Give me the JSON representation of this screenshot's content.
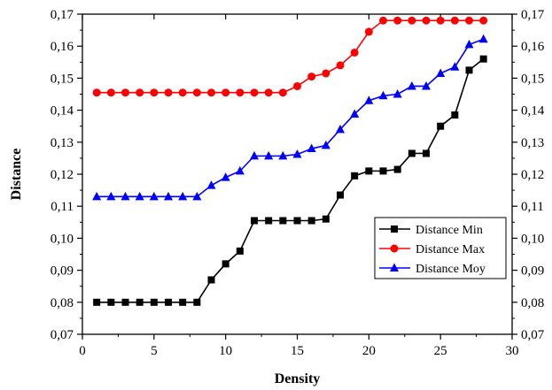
{
  "chart_data": {
    "type": "line",
    "xlabel": "Density",
    "ylabel": "Distance",
    "xlim": [
      0,
      30
    ],
    "ylim": [
      0.07,
      0.17
    ],
    "x_ticks": [
      0,
      5,
      10,
      15,
      20,
      25,
      30
    ],
    "x_tick_labels": [
      "0",
      "5",
      "10",
      "15",
      "20",
      "25",
      "30"
    ],
    "y_ticks": [
      0.07,
      0.08,
      0.09,
      0.1,
      0.11,
      0.12,
      0.13,
      0.14,
      0.15,
      0.16,
      0.17
    ],
    "y_tick_labels": [
      "0,07",
      "0,08",
      "0,09",
      "0,10",
      "0,11",
      "0,12",
      "0,13",
      "0,14",
      "0,15",
      "0,16",
      "0,17"
    ],
    "right_axis_mirrored": true,
    "grid": false,
    "legend_position": "lower-right",
    "x": [
      1,
      2,
      3,
      4,
      5,
      6,
      7,
      8,
      9,
      10,
      11,
      12,
      13,
      14,
      15,
      16,
      17,
      18,
      19,
      20,
      21,
      22,
      23,
      24,
      25,
      26,
      27,
      28
    ],
    "series": [
      {
        "name": "Distance Min",
        "color": "#000000",
        "marker": "square",
        "values": [
          0.08,
          0.08,
          0.08,
          0.08,
          0.08,
          0.08,
          0.08,
          0.08,
          0.087,
          0.092,
          0.096,
          0.1055,
          0.1055,
          0.1055,
          0.1055,
          0.1055,
          0.106,
          0.1135,
          0.1195,
          0.121,
          0.121,
          0.1215,
          0.1265,
          0.1265,
          0.135,
          0.1385,
          0.1525,
          0.156
        ]
      },
      {
        "name": "Distance Max",
        "color": "#ff0000",
        "marker": "circle",
        "values": [
          0.1455,
          0.1455,
          0.1455,
          0.1455,
          0.1455,
          0.1455,
          0.1455,
          0.1455,
          0.1455,
          0.1455,
          0.1455,
          0.1455,
          0.1455,
          0.1455,
          0.1475,
          0.1505,
          0.1515,
          0.154,
          0.158,
          0.1645,
          0.168,
          0.168,
          0.168,
          0.168,
          0.168,
          0.168,
          0.168,
          0.168
        ]
      },
      {
        "name": "Distance Moy",
        "color": "#0000ff",
        "marker": "triangle",
        "values": [
          0.113,
          0.113,
          0.113,
          0.113,
          0.113,
          0.113,
          0.113,
          0.113,
          0.1165,
          0.119,
          0.121,
          0.1257,
          0.1257,
          0.1257,
          0.1262,
          0.128,
          0.129,
          0.134,
          0.1388,
          0.143,
          0.1445,
          0.145,
          0.1475,
          0.1475,
          0.1515,
          0.1535,
          0.1605,
          0.1622
        ]
      }
    ]
  }
}
